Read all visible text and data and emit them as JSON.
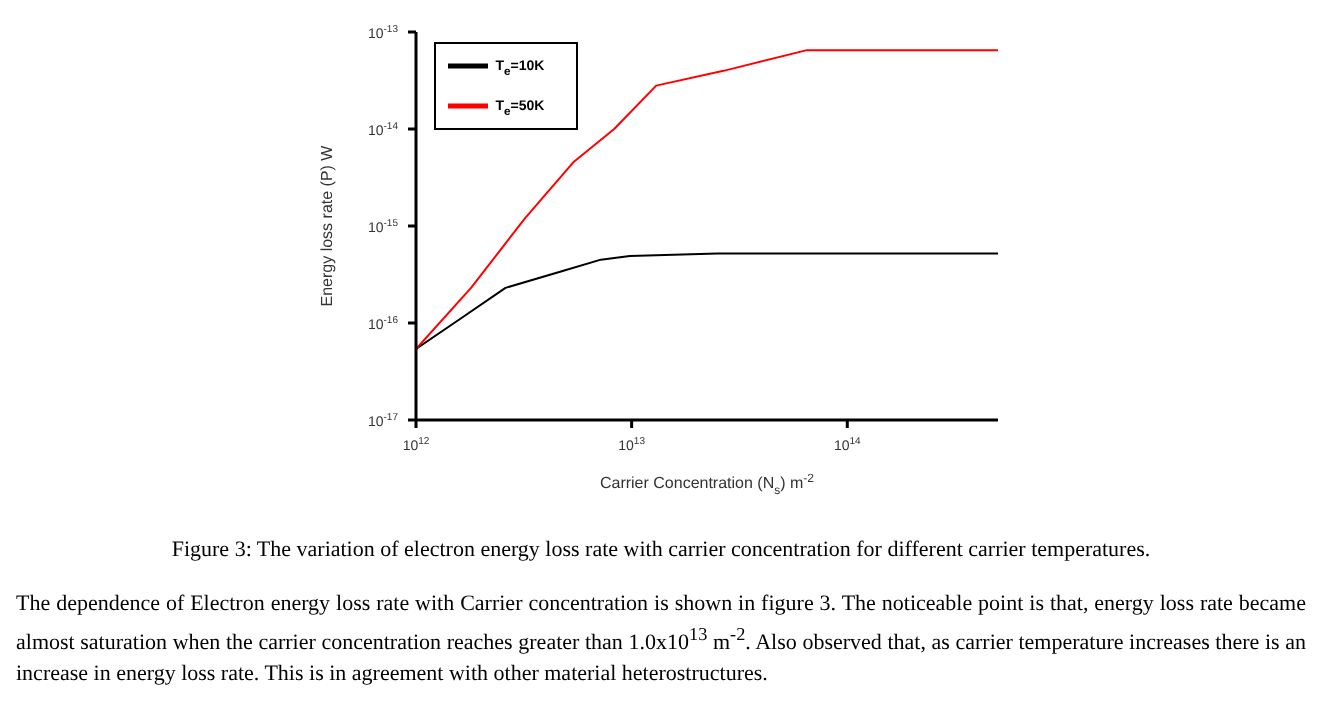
{
  "chart_data": {
    "type": "line",
    "xlabel": "Carrier Concentration (N$_{s}$) m$^{-2}$",
    "ylabel": "Energy loss rate (P) W",
    "log": "xy",
    "legend": "top left",
    "grid": false,
    "marker": "none",
    "line_style": "solid",
    "xlim": [
      1000000000000.0,
      500000000000000.0
    ],
    "xticks": [
      {
        "value": 1000000000000.0,
        "label": "10$^{12}$"
      },
      {
        "value": 10000000000000.0,
        "label": "10$^{13}$"
      },
      {
        "value": 100000000000000.0,
        "label": "10$^{14}$"
      }
    ],
    "ylim": [
      1e-17,
      1e-13
    ],
    "yticks": [
      {
        "value": 1e-17,
        "label": "10$^{-17}$"
      },
      {
        "value": 1e-16,
        "label": "10$^{-16}$"
      },
      {
        "value": 1e-15,
        "label": "10$^{-15}$"
      },
      {
        "value": 1e-14,
        "label": "10$^{-14}$"
      },
      {
        "value": 1e-13,
        "label": "10$^{-13}$"
      }
    ],
    "series": [
      {
        "name": "T$_{e}$=10K",
        "color": "#000000",
        "x": [
          1000000000000.0,
          1600000000000.0,
          2600000000000.0,
          4700000000000.0,
          7200000000000.0,
          9800000000000.0,
          25000000000000.0,
          100000000000000.0,
          500000000000000.0
        ],
        "values": [
          5.4e-17,
          1.1e-16,
          2.3e-16,
          3.4e-16,
          4.5e-16,
          4.9e-16,
          5.2e-16,
          5.2e-16,
          5.2e-16
        ]
      },
      {
        "name": "T$_{e}$=50K",
        "color": "#ff0000",
        "x": [
          1000000000000.0,
          1800000000000.0,
          3200000000000.0,
          5400000000000.0,
          8300000000000.0,
          13000000000000.0,
          27000000000000.0,
          65000000000000.0,
          100000000000000.0,
          500000000000000.0
        ],
        "values": [
          5.4e-17,
          2.3e-16,
          1.2e-15,
          4.6e-15,
          1e-14,
          2.8e-14,
          4e-14,
          6.5e-14,
          6.5e-14,
          6.5e-14
        ]
      }
    ],
    "annotations": [
      "Figure 3: The variation of electron energy loss rate with carrier concentration for different carrier temperatures.",
      "The dependence of Electron energy loss rate with Carrier concentration is shown in figure 3. The noticeable point is that, energy loss rate became almost saturation when the carrier concentration reaches greater than 1.0x10$^{13}$ m$^{-2}$. Also observed that, as carrier temperature increases there is an increase in energy loss rate. This is in agreement with other material heterostructures."
    ]
  }
}
